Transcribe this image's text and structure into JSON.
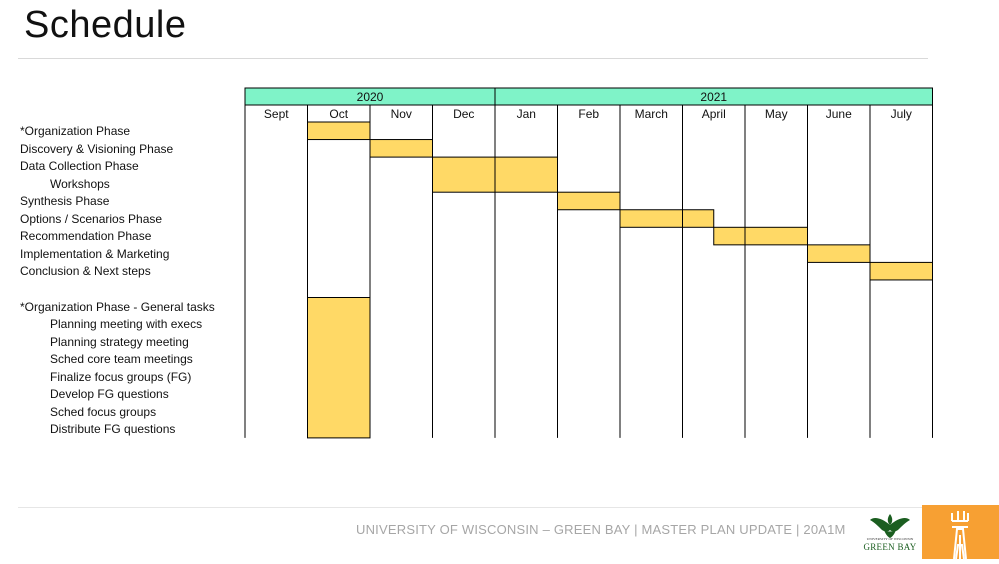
{
  "title": "Schedule",
  "years": [
    {
      "label": "2020",
      "start": 0,
      "end": 4
    },
    {
      "label": "2021",
      "start": 4,
      "end": 11
    }
  ],
  "months": [
    "Sept",
    "Oct",
    "Nov",
    "Dec",
    "Jan",
    "Feb",
    "March",
    "April",
    "May",
    "June",
    "July"
  ],
  "tasks": [
    {
      "label": "*Organization Phase",
      "indent": false
    },
    {
      "label": "Discovery & Visioning Phase",
      "indent": false
    },
    {
      "label": "Data Collection Phase",
      "indent": false
    },
    {
      "label": "Workshops",
      "indent": true
    },
    {
      "label": "Synthesis Phase",
      "indent": false
    },
    {
      "label": "Options / Scenarios Phase",
      "indent": false
    },
    {
      "label": "Recommendation Phase",
      "indent": false
    },
    {
      "label": "Implementation & Marketing",
      "indent": false
    },
    {
      "label": "Conclusion & Next steps",
      "indent": false
    },
    {
      "label": "",
      "indent": false
    },
    {
      "label": "*Organization Phase  - General tasks",
      "indent": false
    },
    {
      "label": "Planning meeting with execs",
      "indent": true
    },
    {
      "label": "Planning strategy meeting",
      "indent": true
    },
    {
      "label": "Sched core team meetings",
      "indent": true
    },
    {
      "label": "Finalize focus groups (FG)",
      "indent": true
    },
    {
      "label": "Develop FG questions",
      "indent": true
    },
    {
      "label": "Sched focus groups",
      "indent": true
    },
    {
      "label": "Distribute FG questions",
      "indent": true
    }
  ],
  "bars": [
    {
      "row_start": 0,
      "row_end": 1,
      "month_start": 1,
      "month_end": 2
    },
    {
      "row_start": 1,
      "row_end": 2,
      "month_start": 2,
      "month_end": 3
    },
    {
      "row_start": 2,
      "row_end": 4,
      "month_start": 3,
      "month_end": 5
    },
    {
      "row_start": 4,
      "row_end": 5,
      "month_start": 5,
      "month_end": 6
    },
    {
      "row_start": 5,
      "row_end": 6,
      "month_start": 6,
      "month_end": 7.5
    },
    {
      "row_start": 6,
      "row_end": 7,
      "month_start": 7.5,
      "month_end": 9
    },
    {
      "row_start": 7,
      "row_end": 8,
      "month_start": 9,
      "month_end": 10
    },
    {
      "row_start": 8,
      "row_end": 9,
      "month_start": 10,
      "month_end": 11
    },
    {
      "row_start": 10,
      "row_end": 18,
      "month_start": 1,
      "month_end": 2
    }
  ],
  "colors": {
    "year_header": "#7ff3c8",
    "bar": "#ffd966",
    "footer_text": "#a6a6a6",
    "uwgb_green": "#1b5e20",
    "orange_logo": "#f7a033"
  },
  "footer": "UNIVERSITY OF WISCONSIN – GREEN BAY | MASTER PLAN UPDATE | 20A1M",
  "logos": {
    "uwgb_small": "UNIVERSITY OF WISCONSIN",
    "uwgb_big": "GREEN BAY",
    "uwgb_icon": "phoenix-icon",
    "firm_icon": "building-tower-icon"
  }
}
